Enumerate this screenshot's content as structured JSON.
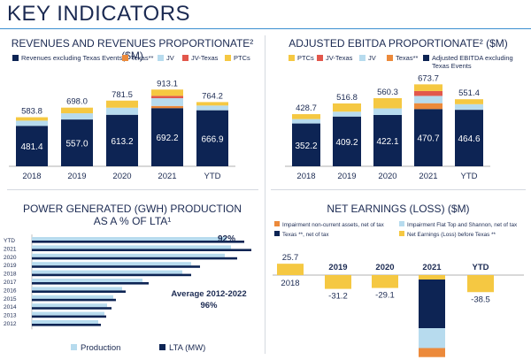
{
  "page": {
    "title": "KEY INDICATORS"
  },
  "colors": {
    "navy": "#0d2454",
    "lightblue": "#b7dbee",
    "gray": "#d9d9d9",
    "yellow": "#f5c842",
    "orange": "#ec8a3b",
    "red": "#e2574c"
  },
  "chart_data": [
    {
      "type": "bar",
      "title": "REVENUES AND REVENUES PROPORTIONATE² ($M)",
      "categories": [
        "2018",
        "2019",
        "2020",
        "2021",
        "YTD"
      ],
      "legend": [
        "Revenues excluding Texas Events",
        "Texas**",
        "JV",
        "JV-Texas",
        "PTCs"
      ],
      "series": [
        {
          "name": "Revenues excluding Texas Events",
          "values": [
            481.4,
            557.0,
            613.2,
            692.2,
            666.9
          ]
        },
        {
          "name": "Texas**",
          "values": [
            0,
            0,
            0,
            26,
            0
          ]
        },
        {
          "name": "JV",
          "values": [
            62,
            74,
            84,
            92,
            56
          ]
        },
        {
          "name": "JV-Texas",
          "values": [
            0,
            0,
            0,
            28,
            0
          ]
        },
        {
          "name": "PTCs",
          "values": [
            40.4,
            67.0,
            84.3,
            74.9,
            41.3
          ]
        }
      ],
      "inner_labels": [
        "481.4",
        "557.0",
        "613.2",
        "692.2",
        "666.9"
      ],
      "totals": [
        "583.8",
        "698.0",
        "781.5",
        "913.1",
        "764.2"
      ],
      "ylim": [
        0,
        1000
      ]
    },
    {
      "type": "bar",
      "title": "ADJUSTED EBITDA PROPORTIONATE² ($M)",
      "categories": [
        "2018",
        "2019",
        "2020",
        "2021",
        "YTD"
      ],
      "legend": [
        "PTCs",
        "JV-Texas",
        "JV",
        "Texas**",
        "Adjusted EBITDA excluding Texas Events"
      ],
      "series": [
        {
          "name": "Adjusted EBITDA excluding Texas Events",
          "values": [
            352.2,
            409.2,
            422.1,
            470.7,
            464.6
          ]
        },
        {
          "name": "Texas**",
          "values": [
            0,
            0,
            0,
            48,
            0
          ]
        },
        {
          "name": "JV",
          "values": [
            36,
            40,
            54,
            60,
            46
          ]
        },
        {
          "name": "JV-Texas",
          "values": [
            0,
            0,
            0,
            40,
            0
          ]
        },
        {
          "name": "PTCs",
          "values": [
            40.5,
            67.6,
            84.2,
            55.0,
            40.8
          ]
        }
      ],
      "inner_labels": [
        "352.2",
        "409.2",
        "422.1",
        "470.7",
        "464.6"
      ],
      "totals": [
        "428.7",
        "516.8",
        "560.3",
        "673.7",
        "551.4"
      ],
      "ylim": [
        0,
        800
      ]
    },
    {
      "type": "bar",
      "orientation": "horizontal",
      "title": "POWER GENERATED (GWH) PRODUCTION",
      "subtitle": "AS A % OF LTA¹",
      "categories": [
        "YTD",
        "2021",
        "2020",
        "2019",
        "2018",
        "2017",
        "2016",
        "2015",
        "2014",
        "2013",
        "2012"
      ],
      "legend": [
        "Production",
        "LTA (MW)"
      ],
      "series": [
        {
          "name": "Production",
          "values": [
            220,
            225,
            218,
            180,
            170,
            125,
            102,
            92,
            85,
            82,
            75
          ]
        },
        {
          "name": "LTA (MW)",
          "values": [
            240,
            248,
            232,
            190,
            180,
            132,
            106,
            95,
            90,
            84,
            78
          ]
        }
      ],
      "ytd_label": "92%",
      "annotation_line1": "Average  2012-2022",
      "annotation_line2": "96%"
    },
    {
      "type": "bar",
      "subtype": "waterfall",
      "title": "NET EARNINGS (LOSS) ($M)",
      "categories": [
        "2018",
        "2019",
        "2020",
        "2021",
        "YTD"
      ],
      "legend": [
        "Impairment non-current assets, net of tax",
        "Impairment Flat Top and Shannon, net of tax",
        "Texas **, net of tax",
        "Net Earnings (Loss) before Texas **"
      ],
      "series": [
        {
          "name": "Net Earnings (Loss) before Texas **",
          "values": [
            25.7,
            -31.2,
            -29.1,
            -10,
            -38.5
          ]
        },
        {
          "name": "Texas **, net of tax",
          "values": [
            0,
            0,
            0,
            -110,
            0
          ]
        },
        {
          "name": "Impairment Flat Top and Shannon, net of tax",
          "values": [
            0,
            0,
            0,
            -45,
            0
          ]
        },
        {
          "name": "Impairment non-current assets, net of tax",
          "values": [
            0,
            0,
            0,
            -20.4,
            0
          ]
        }
      ],
      "totals": [
        "25.7",
        "-31.2",
        "-29.1",
        "-185.4",
        "-38.5"
      ]
    }
  ]
}
